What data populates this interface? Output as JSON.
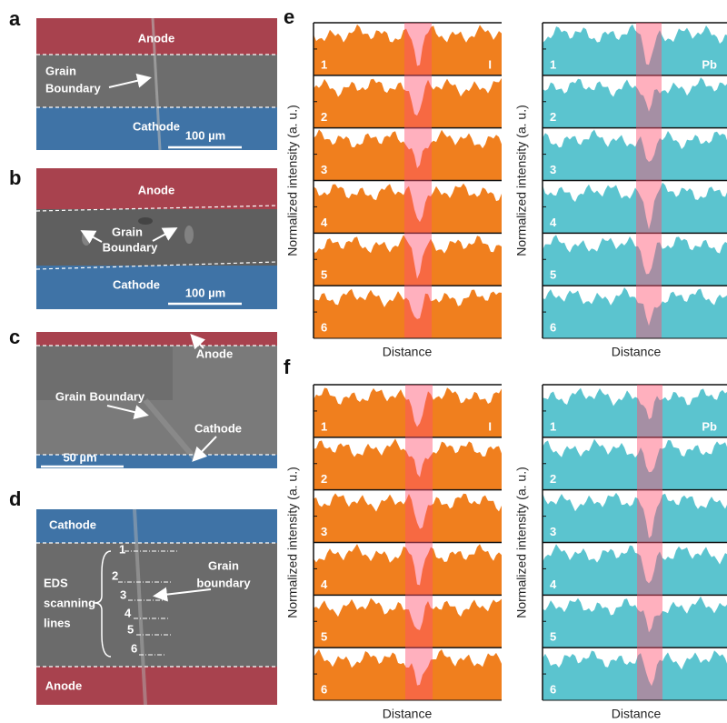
{
  "panels": {
    "a": {
      "label": "a",
      "top_region": "Anode",
      "bottom_region": "Cathode",
      "annotation": [
        "Grain",
        "Boundary"
      ],
      "scale_bar": "100 µm"
    },
    "b": {
      "label": "b",
      "top_region": "Anode",
      "bottom_region": "Cathode",
      "annotation": [
        "Grain",
        "Boundary"
      ],
      "scale_bar": "100 µm"
    },
    "c": {
      "label": "c",
      "annotations": [
        "Anode",
        "Grain Boundary",
        "Cathode"
      ],
      "scale_bar": "50 µm"
    },
    "d": {
      "label": "d",
      "top_region": "Cathode",
      "bottom_region": "Anode",
      "bracket_label": [
        "EDS",
        "scanning",
        "lines"
      ],
      "annotation": [
        "Grain",
        "boundary"
      ],
      "line_numbers": [
        "1",
        "2",
        "3",
        "4",
        "5",
        "6"
      ]
    },
    "e": {
      "label": "e",
      "plots": [
        {
          "element": "I",
          "y_label": "Normalized intensity (a. u.)",
          "x_label": "Distance",
          "traces": [
            "1",
            "2",
            "3",
            "4",
            "5",
            "6"
          ]
        },
        {
          "element": "Pb",
          "y_label": "Normalized intensity (a. u.)",
          "x_label": "Distance",
          "traces": [
            "1",
            "2",
            "3",
            "4",
            "5",
            "6"
          ]
        }
      ]
    },
    "f": {
      "label": "f",
      "plots": [
        {
          "element": "I",
          "y_label": "Normalized intensity (a. u.)",
          "x_label": "Distance",
          "traces": [
            "1",
            "2",
            "3",
            "4",
            "5",
            "6"
          ]
        },
        {
          "element": "Pb",
          "y_label": "Normalized intensity (a. u.)",
          "x_label": "Distance",
          "traces": [
            "1",
            "2",
            "3",
            "4",
            "5",
            "6"
          ]
        }
      ]
    }
  }
}
